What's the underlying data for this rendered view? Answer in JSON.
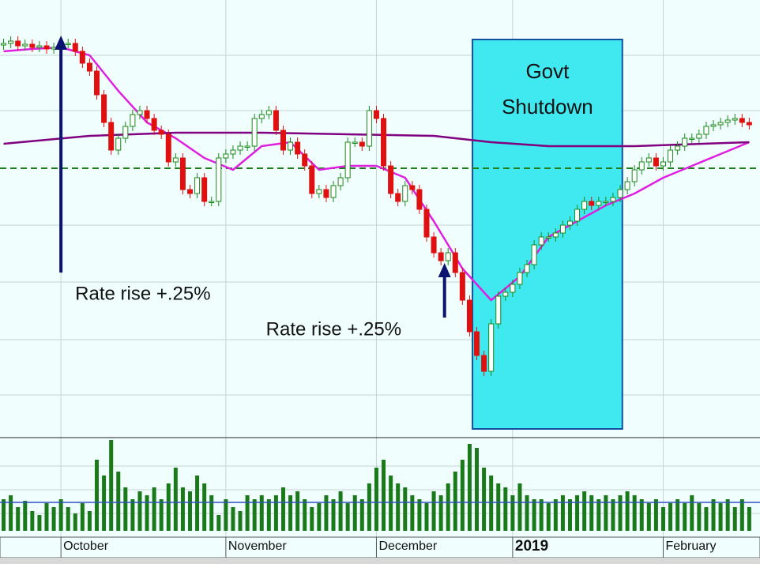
{
  "chart_data": {
    "type": "candlestick",
    "xlim": [
      -0.5,
      105.5
    ],
    "ylim": [
      0,
      552
    ],
    "xticks": [
      {
        "value": 8,
        "label": "October"
      },
      {
        "value": 31,
        "label": "November"
      },
      {
        "value": 52,
        "label": "December"
      },
      {
        "value": 71,
        "label": "2019"
      },
      {
        "value": 92,
        "label": "February"
      }
    ],
    "up_color": "#1a8a1a",
    "down_color": "#e01010",
    "open": [
      495,
      497,
      500,
      494,
      496,
      492,
      494,
      490,
      492,
      497,
      497,
      487,
      472,
      462,
      432,
      397,
      362,
      377,
      392,
      407,
      412,
      402,
      387,
      382,
      347,
      352,
      312,
      307,
      327,
      297,
      297,
      352,
      357,
      362,
      367,
      367,
      402,
      407,
      412,
      387,
      362,
      372,
      357,
      342,
      307,
      312,
      302,
      317,
      327,
      372,
      372,
      367,
      412,
      402,
      342,
      307,
      297,
      317,
      312,
      287,
      252,
      232,
      222,
      232,
      207,
      172,
      132,
      102,
      82,
      142,
      177,
      182,
      192,
      207,
      217,
      242,
      252,
      252,
      257,
      267,
      272,
      287,
      297,
      292,
      297,
      297,
      302,
      312,
      322,
      337,
      347,
      352,
      342,
      347,
      362,
      367,
      377,
      377,
      382,
      392,
      394,
      397,
      400,
      402,
      397
    ],
    "high": [
      503,
      506,
      506,
      502,
      502,
      500,
      500,
      498,
      503,
      503,
      503,
      493,
      478,
      468,
      438,
      403,
      383,
      398,
      413,
      418,
      418,
      408,
      393,
      388,
      358,
      358,
      318,
      333,
      333,
      303,
      358,
      363,
      368,
      373,
      373,
      408,
      413,
      418,
      418,
      393,
      378,
      378,
      363,
      348,
      318,
      318,
      323,
      333,
      378,
      378,
      378,
      418,
      418,
      408,
      348,
      313,
      323,
      323,
      318,
      293,
      258,
      238,
      238,
      238,
      213,
      178,
      138,
      108,
      148,
      183,
      188,
      198,
      213,
      223,
      248,
      258,
      258,
      263,
      273,
      278,
      293,
      303,
      303,
      303,
      303,
      308,
      318,
      328,
      343,
      353,
      358,
      358,
      353,
      368,
      373,
      383,
      383,
      388,
      398,
      400,
      403,
      406,
      408,
      408,
      403
    ],
    "low": [
      489,
      491,
      488,
      488,
      486,
      486,
      484,
      484,
      486,
      491,
      481,
      466,
      456,
      426,
      391,
      356,
      356,
      371,
      386,
      401,
      396,
      381,
      376,
      341,
      341,
      306,
      301,
      301,
      291,
      291,
      291,
      346,
      351,
      356,
      361,
      361,
      396,
      401,
      381,
      356,
      356,
      351,
      336,
      301,
      301,
      296,
      296,
      311,
      321,
      366,
      361,
      361,
      396,
      336,
      301,
      291,
      291,
      306,
      281,
      246,
      226,
      216,
      216,
      201,
      166,
      126,
      96,
      76,
      76,
      136,
      171,
      176,
      186,
      201,
      211,
      236,
      246,
      246,
      251,
      261,
      266,
      281,
      286,
      286,
      291,
      291,
      296,
      306,
      316,
      331,
      341,
      336,
      336,
      341,
      356,
      361,
      371,
      371,
      376,
      386,
      388,
      391,
      394,
      391,
      388
    ],
    "close": [
      497,
      500,
      494,
      496,
      492,
      494,
      490,
      492,
      497,
      497,
      487,
      472,
      462,
      432,
      397,
      362,
      377,
      392,
      407,
      412,
      402,
      387,
      382,
      347,
      352,
      312,
      307,
      327,
      297,
      297,
      352,
      357,
      362,
      367,
      367,
      402,
      407,
      412,
      387,
      362,
      372,
      357,
      342,
      307,
      312,
      302,
      317,
      327,
      372,
      372,
      367,
      412,
      402,
      342,
      307,
      297,
      317,
      312,
      287,
      252,
      232,
      222,
      232,
      207,
      172,
      132,
      102,
      82,
      142,
      177,
      182,
      192,
      207,
      217,
      242,
      252,
      252,
      257,
      267,
      272,
      287,
      297,
      292,
      297,
      297,
      302,
      312,
      322,
      337,
      347,
      352,
      342,
      347,
      362,
      367,
      377,
      377,
      382,
      392,
      394,
      397,
      400,
      402,
      397,
      394
    ],
    "series": [
      {
        "color": "#e020e0",
        "x": [
          0,
          4,
          8,
          12,
          16,
          20,
          24,
          28,
          32,
          36,
          40,
          44,
          48,
          52,
          56,
          60,
          64,
          68,
          72,
          76,
          80,
          84,
          88,
          92,
          96,
          100,
          104
        ],
        "values": [
          487,
          490,
          492,
          482,
          437,
          397,
          377,
          352,
          337,
          367,
          372,
          337,
          342,
          342,
          327,
          272,
          212,
          172,
          202,
          252,
          272,
          292,
          307,
          327,
          342,
          357,
          372
        ]
      },
      {
        "color": "#800080",
        "x": [
          0,
          12,
          24,
          36,
          48,
          60,
          68,
          76,
          88,
          104
        ],
        "values": [
          370,
          380,
          384,
          384,
          382,
          380,
          372,
          367,
          367,
          372
        ]
      }
    ],
    "reference_line": 339,
    "reference_color": "#208020",
    "volume": [
      40,
      45,
      30,
      38,
      25,
      20,
      35,
      30,
      40,
      30,
      22,
      35,
      25,
      90,
      70,
      115,
      75,
      55,
      40,
      50,
      45,
      55,
      40,
      60,
      80,
      55,
      50,
      70,
      60,
      45,
      20,
      40,
      30,
      25,
      45,
      40,
      45,
      40,
      45,
      55,
      45,
      50,
      40,
      30,
      35,
      45,
      40,
      50,
      35,
      45,
      40,
      60,
      80,
      90,
      70,
      60,
      55,
      45,
      40,
      35,
      50,
      45,
      60,
      75,
      90,
      110,
      105,
      80,
      70,
      60,
      55,
      45,
      60,
      45,
      40,
      40,
      35,
      40,
      45,
      40,
      45,
      50,
      45,
      40,
      45,
      40,
      45,
      50,
      45,
      40,
      35,
      40,
      30,
      35,
      40,
      35,
      45,
      35,
      30,
      40,
      35,
      40,
      30,
      40,
      30
    ],
    "volume_lim": [
      0,
      116
    ],
    "volume_color": "#1a7a1a",
    "volume_average": 36,
    "volume_average_color": "#3050c0",
    "shade": {
      "x": [
        65.4,
        86.3
      ],
      "y": [
        9,
        502
      ],
      "color": "#40e8f0",
      "label": [
        "Govt",
        "Shutdown"
      ]
    },
    "annotations": [
      {
        "text": "Rate rise +.25%",
        "x": 8,
        "y_from": 207,
        "y_to": 507
      },
      {
        "text": "Rate rise +.25%",
        "x": 61.5,
        "y_from": 150,
        "y_to": 219
      }
    ],
    "arrow_color": "#0a1470"
  }
}
